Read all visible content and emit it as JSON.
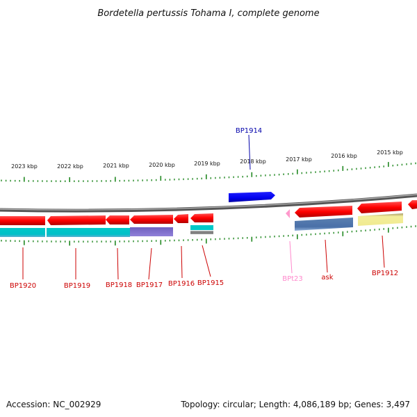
{
  "title": "Bordetella pertussis Tohama I, complete genome",
  "footer": {
    "accession": "Accession: NC_002929",
    "summary": "Topology: circular; Length: 4,086,189 bp; Genes: 3,497"
  },
  "colors": {
    "forward_gene": "#ff0000",
    "reverse_cds": "#00c8c8",
    "highlight_gene": "#0000ee",
    "label_red": "#cc0000",
    "label_blue": "#0000aa",
    "label_pink": "#ff88cc",
    "backbone": "#888888",
    "tick": "#228822"
  },
  "scale_ticks": [
    "2023 kbp",
    "2022 kbp",
    "2021 kbp",
    "2020 kbp",
    "2019 kbp",
    "2018 kbp",
    "2017 kbp",
    "2016 kbp",
    "2015 kbp"
  ],
  "genes": [
    {
      "id": "BP1920",
      "label": "BP1920",
      "color": "label_red"
    },
    {
      "id": "BP1919",
      "label": "BP1919",
      "color": "label_red"
    },
    {
      "id": "BP1918",
      "label": "BP1918",
      "color": "label_red"
    },
    {
      "id": "BP1917",
      "label": "BP1917",
      "color": "label_red"
    },
    {
      "id": "BP1916",
      "label": "BP1916",
      "color": "label_red"
    },
    {
      "id": "BP1915",
      "label": "BP1915",
      "color": "label_red"
    },
    {
      "id": "BP1914",
      "label": "BP1914",
      "color": "label_blue"
    },
    {
      "id": "BPt23",
      "label": "BPt23",
      "color": "label_pink"
    },
    {
      "id": "ask",
      "label": "ask",
      "color": "label_red"
    },
    {
      "id": "BP1912",
      "label": "BP1912",
      "color": "label_red"
    }
  ]
}
